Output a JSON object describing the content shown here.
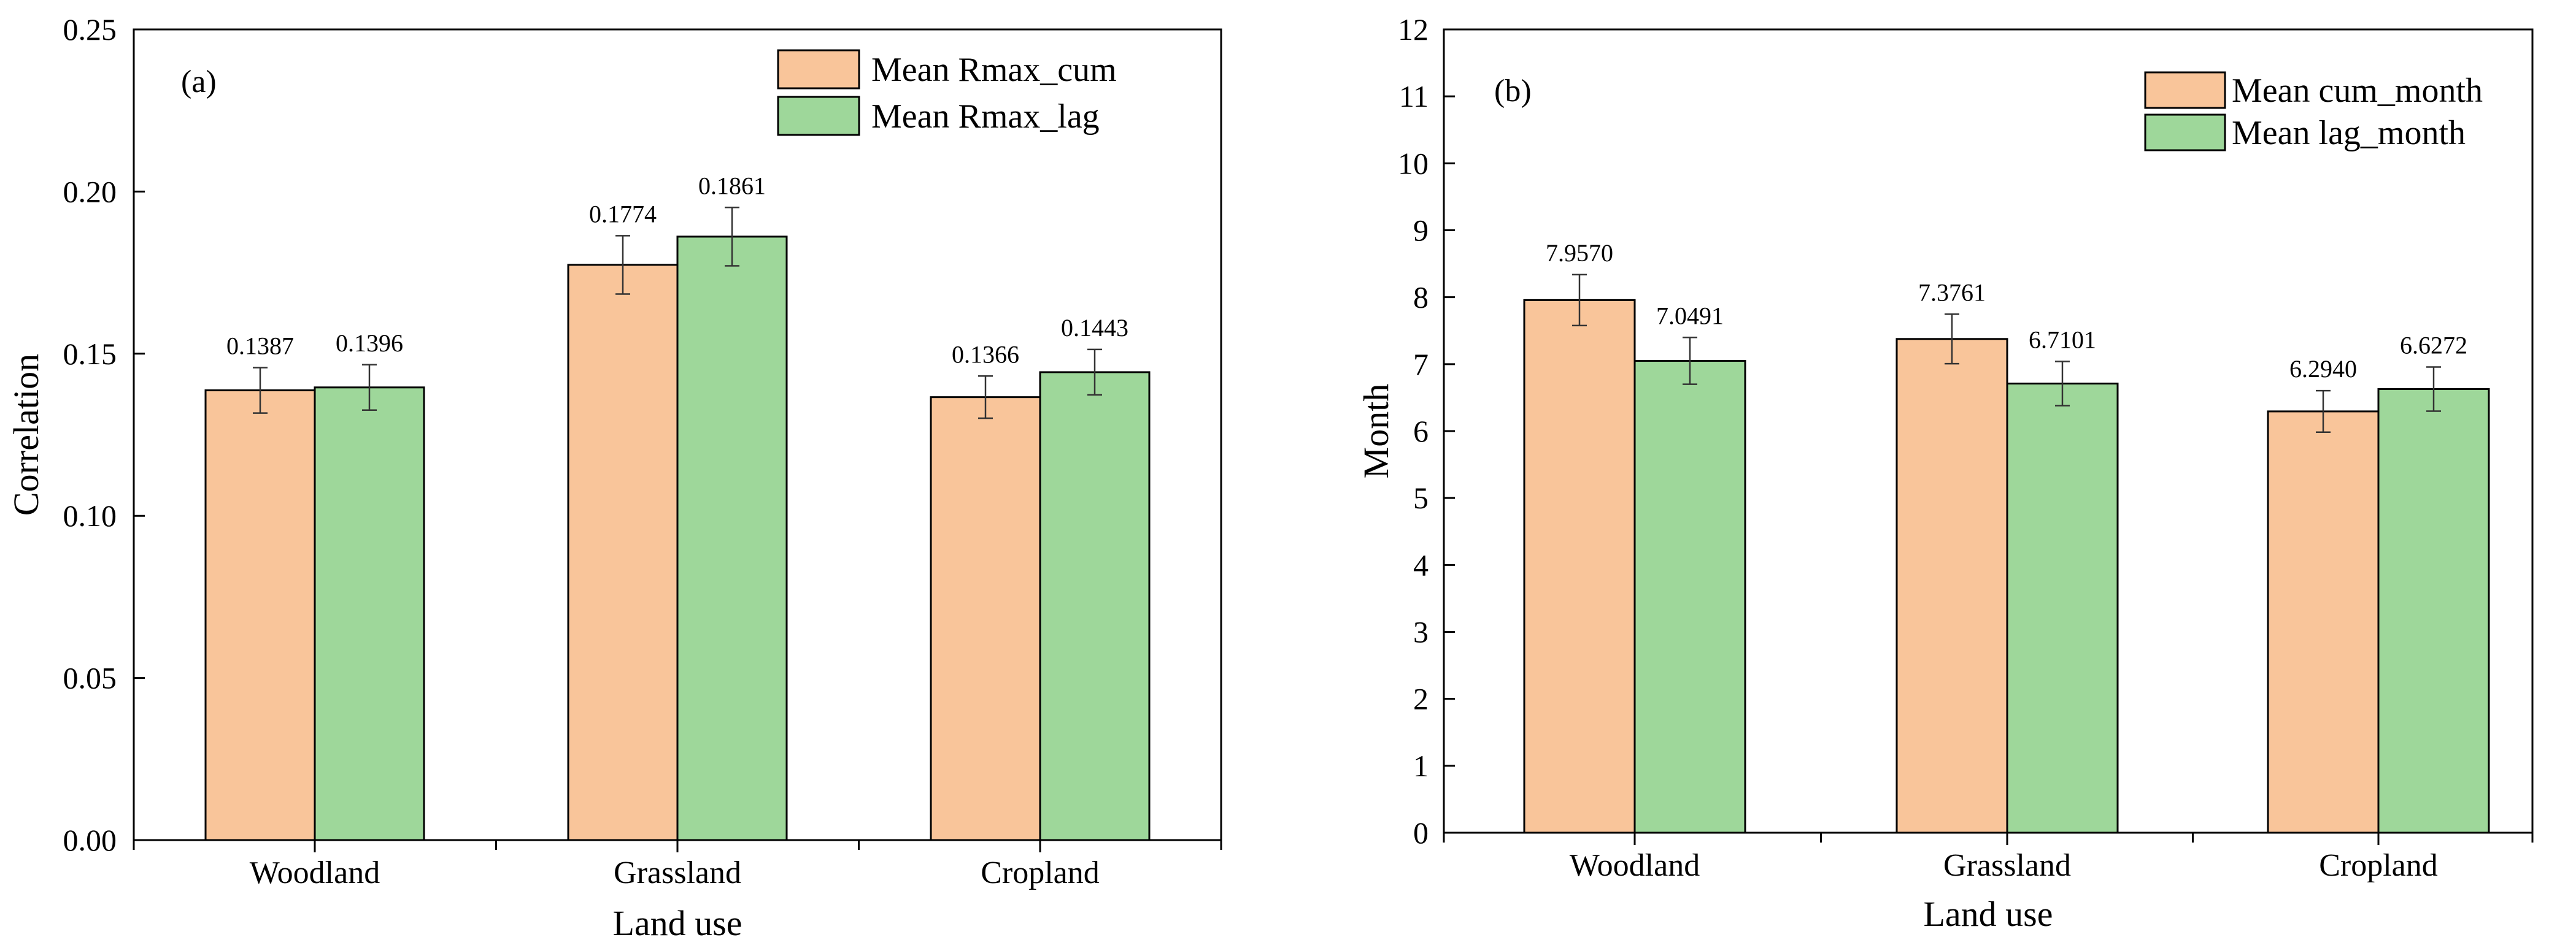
{
  "chart_data": [
    {
      "type": "bar",
      "panel": "(a)",
      "categories": [
        "Woodland",
        "Grassland",
        "Cropland"
      ],
      "series": [
        {
          "name": "Mean Rmax_cum",
          "color": "#f9c59a",
          "values": [
            0.1387,
            0.1774,
            0.1366
          ],
          "errors": [
            0.007,
            0.009,
            0.0065
          ],
          "labels": [
            "0.1387",
            "0.1774",
            "0.1366"
          ]
        },
        {
          "name": "Mean Rmax_lag",
          "color": "#9ed79a",
          "values": [
            0.1396,
            0.1861,
            0.1443
          ],
          "errors": [
            0.007,
            0.009,
            0.007
          ],
          "labels": [
            "0.1396",
            "0.1861",
            "0.1443"
          ]
        }
      ],
      "xlabel": "Land use",
      "ylabel": "Correlation",
      "ylim": [
        0,
        0.25
      ],
      "yticks": [
        "0.00",
        "0.05",
        "0.10",
        "0.15",
        "0.20",
        "0.25"
      ],
      "legend_position": "top-right"
    },
    {
      "type": "bar",
      "panel": "(b)",
      "categories": [
        "Woodland",
        "Grassland",
        "Cropland"
      ],
      "series": [
        {
          "name": "Mean cum_month",
          "color": "#f9c59a",
          "values": [
            7.957,
            7.3761,
            6.294
          ],
          "errors": [
            0.38,
            0.37,
            0.31
          ],
          "labels": [
            "7.9570",
            "7.3761",
            "6.2940"
          ]
        },
        {
          "name": "Mean lag_month",
          "color": "#9ed79a",
          "values": [
            7.0491,
            6.7101,
            6.6272
          ],
          "errors": [
            0.35,
            0.33,
            0.33
          ],
          "labels": [
            "7.0491",
            "6.7101",
            "6.6272"
          ]
        }
      ],
      "xlabel": "Land use",
      "ylabel": "Month",
      "ylim": [
        0,
        12
      ],
      "yticks": [
        "0",
        "1",
        "2",
        "3",
        "4",
        "5",
        "6",
        "7",
        "8",
        "9",
        "10",
        "11",
        "12"
      ],
      "legend_position": "top-right"
    }
  ]
}
